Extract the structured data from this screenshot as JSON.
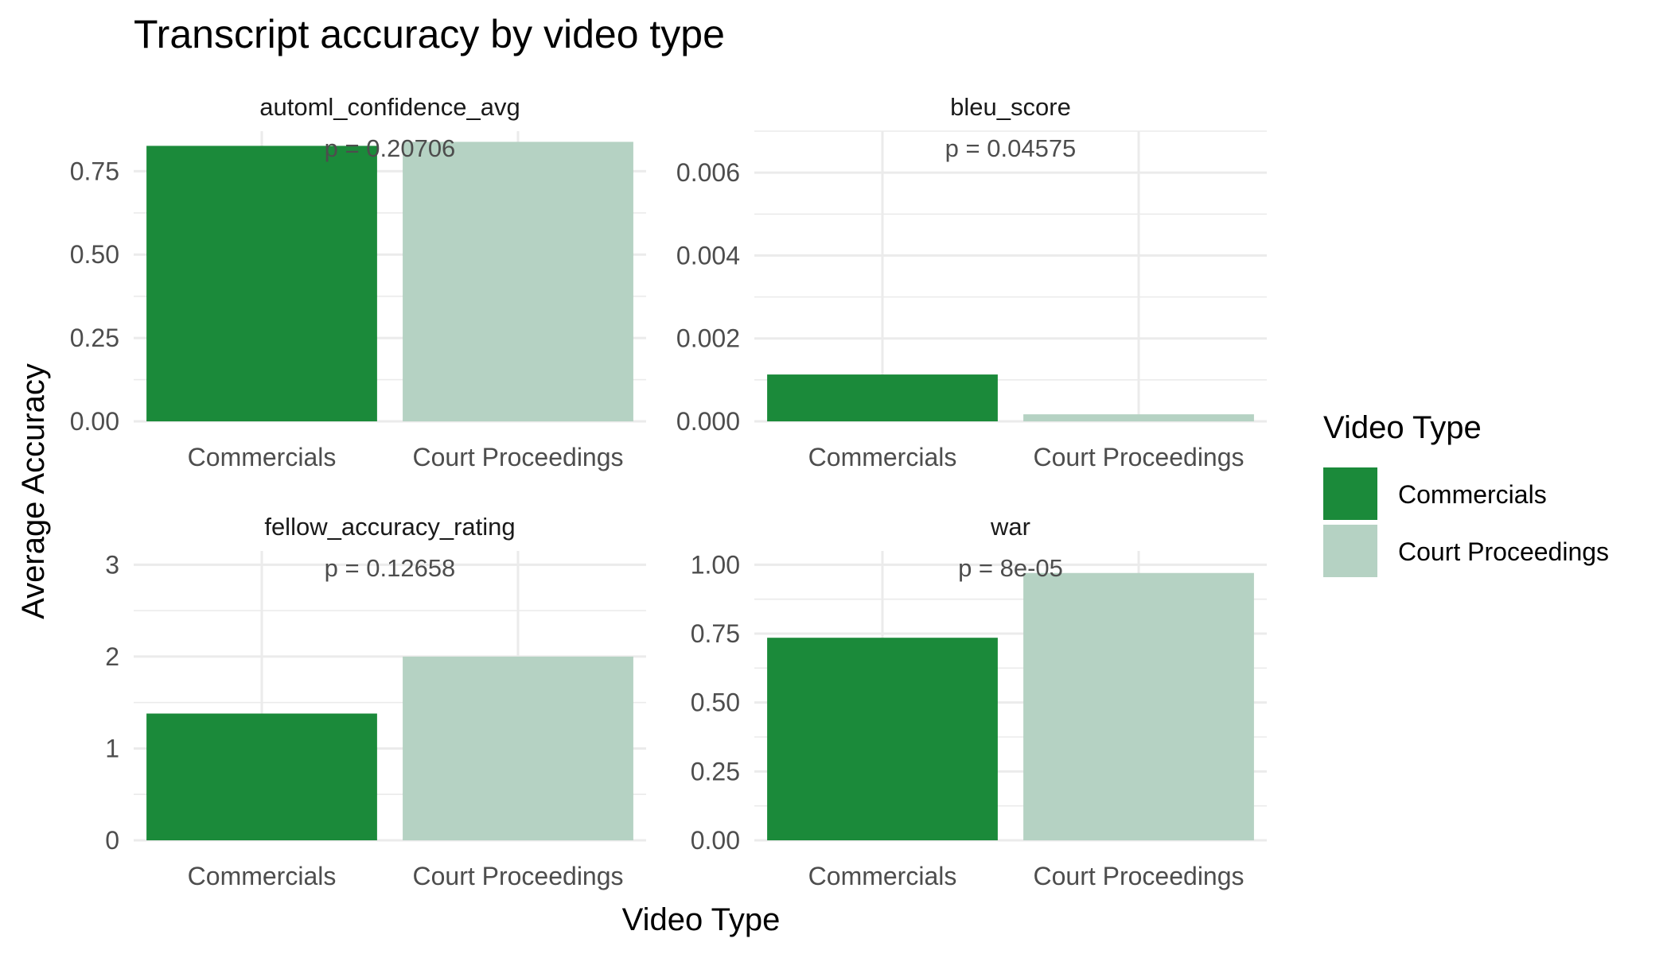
{
  "chart_data": {
    "type": "bar",
    "title": "Transcript accuracy by video type",
    "xlabel": "Video Type",
    "ylabel": "Average Accuracy",
    "categories": [
      "Commercials",
      "Court Proceedings"
    ],
    "legend": {
      "title": "Video Type",
      "placement": "right",
      "entries": [
        {
          "label": "Commercials",
          "color": "#1b8a3a"
        },
        {
          "label": "Court Proceedings",
          "color": "#b5d2c3"
        }
      ]
    },
    "grid": true,
    "panels": [
      {
        "name": "automl_confidence_avg",
        "annotation": "p = 0.20706",
        "values": [
          0.826,
          0.838
        ],
        "ylim": [
          0,
          0.87
        ],
        "yticks": [
          0,
          0.25,
          0.5,
          0.75
        ],
        "ytick_labels": [
          "0.00",
          "0.25",
          "0.50",
          "0.75"
        ]
      },
      {
        "name": "bleu_score",
        "annotation": "p = 0.04575",
        "values": [
          0.00113,
          0.00017
        ],
        "ylim": [
          0,
          0.007
        ],
        "yticks": [
          0,
          0.002,
          0.004,
          0.006
        ],
        "ytick_labels": [
          "0.000",
          "0.002",
          "0.004",
          "0.006"
        ]
      },
      {
        "name": "fellow_accuracy_rating",
        "annotation": "p = 0.12658",
        "values": [
          1.38,
          2.0
        ],
        "ylim": [
          0,
          3.15
        ],
        "yticks": [
          0,
          1,
          2,
          3
        ],
        "ytick_labels": [
          "0",
          "1",
          "2",
          "3"
        ]
      },
      {
        "name": "war",
        "annotation": "p = 8e-05",
        "values": [
          0.735,
          0.97
        ],
        "ylim": [
          0,
          1.05
        ],
        "yticks": [
          0,
          0.25,
          0.5,
          0.75,
          1.0
        ],
        "ytick_labels": [
          "0.00",
          "0.25",
          "0.50",
          "0.75",
          "1.00"
        ]
      }
    ]
  }
}
